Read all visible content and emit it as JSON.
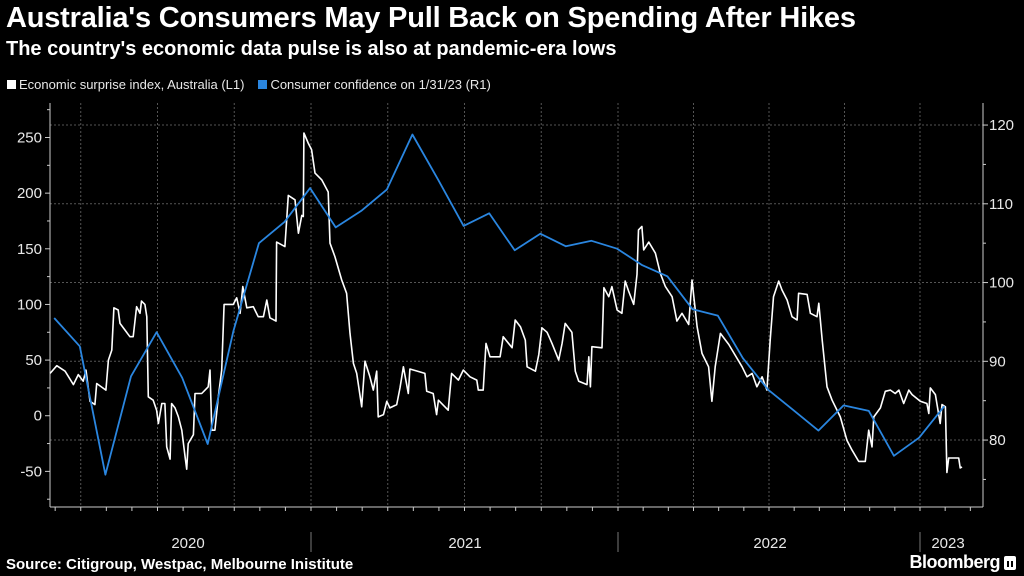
{
  "title": "Australia's Consumers May Pull Back on Spending After Hikes",
  "subtitle": "The country's economic data pulse is also at pandemic-era lows",
  "source": "Source: Citigroup, Westpac, Melbourne Inistitute",
  "brand": "Bloomberg",
  "colors": {
    "background": "#000000",
    "surprise": "#ffffff",
    "confidence": "#2a86e0",
    "grid": "#555555",
    "axis": "#cccccc"
  },
  "chart_data": {
    "type": "line",
    "title": "Australia's Consumers May Pull Back on Spending After Hikes",
    "legend_placement": "top-left",
    "grid": true,
    "x_axis": {
      "type": "date",
      "tick_labels": [
        "2020",
        "2021",
        "2022",
        "2023"
      ],
      "range": [
        "2020-02",
        "2023-03"
      ]
    },
    "y_left": {
      "label": "L1",
      "ticks": [
        -50,
        0,
        50,
        100,
        150,
        200,
        250
      ],
      "range": [
        -82,
        281
      ]
    },
    "y_right": {
      "label": "R1",
      "ticks": [
        80,
        90,
        100,
        110,
        120
      ],
      "range": [
        71.5,
        122.8
      ]
    },
    "series": [
      {
        "name": "Economic surprise index, Australia (L1)",
        "axis": "left",
        "x_unit": "decimal year",
        "points": [
          [
            2020.15,
            38
          ],
          [
            2020.172,
            45
          ],
          [
            2020.199,
            40
          ],
          [
            2020.226,
            28
          ],
          [
            2020.242,
            37
          ],
          [
            2020.258,
            31
          ],
          [
            2020.267,
            41
          ],
          [
            2020.28,
            13
          ],
          [
            2020.296,
            10
          ],
          [
            2020.302,
            29
          ],
          [
            2020.332,
            23
          ],
          [
            2020.34,
            50
          ],
          [
            2020.351,
            59
          ],
          [
            2020.358,
            97
          ],
          [
            2020.372,
            95
          ],
          [
            2020.378,
            83
          ],
          [
            2020.41,
            71
          ],
          [
            2020.421,
            71
          ],
          [
            2020.432,
            98
          ],
          [
            2020.443,
            92
          ],
          [
            2020.448,
            103
          ],
          [
            2020.459,
            100
          ],
          [
            2020.465,
            89
          ],
          [
            2020.47,
            17
          ],
          [
            2020.486,
            14
          ],
          [
            2020.497,
            5
          ],
          [
            2020.503,
            -7
          ],
          [
            2020.514,
            11
          ],
          [
            2020.524,
            11
          ],
          [
            2020.53,
            -28
          ],
          [
            2020.541,
            -39
          ],
          [
            2020.546,
            11
          ],
          [
            2020.557,
            7
          ],
          [
            2020.568,
            -1
          ],
          [
            2020.579,
            -13
          ],
          [
            2020.59,
            -37
          ],
          [
            2020.595,
            -48
          ],
          [
            2020.6,
            -25
          ],
          [
            2020.617,
            -17
          ],
          [
            2020.622,
            20
          ],
          [
            2020.644,
            20
          ],
          [
            2020.665,
            26
          ],
          [
            2020.671,
            41
          ],
          [
            2020.677,
            -13
          ],
          [
            2020.687,
            -13
          ],
          [
            2020.698,
            17
          ],
          [
            2020.709,
            41
          ],
          [
            2020.717,
            100
          ],
          [
            2020.747,
            100
          ],
          [
            2020.758,
            106
          ],
          [
            2020.769,
            92
          ],
          [
            2020.778,
            116
          ],
          [
            2020.791,
            97
          ],
          [
            2020.812,
            98
          ],
          [
            2020.828,
            89
          ],
          [
            2020.845,
            89
          ],
          [
            2020.856,
            104
          ],
          [
            2020.866,
            88
          ],
          [
            2020.886,
            85
          ],
          [
            2020.888,
            156
          ],
          [
            2020.915,
            152
          ],
          [
            2020.926,
            198
          ],
          [
            2020.948,
            194
          ],
          [
            2020.959,
            164
          ],
          [
            2020.97,
            180
          ],
          [
            2020.975,
            179
          ],
          [
            2020.977,
            254
          ],
          [
            2020.991,
            245
          ],
          [
            2021.002,
            239
          ],
          [
            2021.013,
            218
          ],
          [
            2021.035,
            212
          ],
          [
            2021.056,
            201
          ],
          [
            2021.062,
            155
          ],
          [
            2021.078,
            143
          ],
          [
            2021.1,
            122
          ],
          [
            2021.116,
            110
          ],
          [
            2021.127,
            74
          ],
          [
            2021.138,
            47
          ],
          [
            2021.149,
            38
          ],
          [
            2021.165,
            8
          ],
          [
            2021.176,
            49
          ],
          [
            2021.192,
            35
          ],
          [
            2021.203,
            23
          ],
          [
            2021.214,
            40
          ],
          [
            2021.219,
            -1
          ],
          [
            2021.236,
            1
          ],
          [
            2021.247,
            13
          ],
          [
            2021.257,
            7
          ],
          [
            2021.279,
            10
          ],
          [
            2021.29,
            25
          ],
          [
            2021.301,
            44
          ],
          [
            2021.317,
            20
          ],
          [
            2021.322,
            42
          ],
          [
            2021.371,
            38
          ],
          [
            2021.377,
            22
          ],
          [
            2021.398,
            20
          ],
          [
            2021.409,
            1
          ],
          [
            2021.415,
            14
          ],
          [
            2021.447,
            5
          ],
          [
            2021.458,
            38
          ],
          [
            2021.48,
            32
          ],
          [
            2021.496,
            41
          ],
          [
            2021.518,
            35
          ],
          [
            2021.54,
            32
          ],
          [
            2021.545,
            23
          ],
          [
            2021.561,
            23
          ],
          [
            2021.57,
            65
          ],
          [
            2021.583,
            53
          ],
          [
            2021.616,
            53
          ],
          [
            2021.626,
            71
          ],
          [
            2021.655,
            61
          ],
          [
            2021.665,
            86
          ],
          [
            2021.682,
            80
          ],
          [
            2021.698,
            68
          ],
          [
            2021.704,
            44
          ],
          [
            2021.731,
            40
          ],
          [
            2021.742,
            55
          ],
          [
            2021.752,
            79
          ],
          [
            2021.769,
            75
          ],
          [
            2021.785,
            65
          ],
          [
            2021.807,
            50
          ],
          [
            2021.818,
            65
          ],
          [
            2021.828,
            83
          ],
          [
            2021.85,
            75
          ],
          [
            2021.861,
            40
          ],
          [
            2021.872,
            31
          ],
          [
            2021.899,
            28
          ],
          [
            2021.905,
            53
          ],
          [
            2021.91,
            26
          ],
          [
            2021.915,
            62
          ],
          [
            2021.948,
            61
          ],
          [
            2021.954,
            115
          ],
          [
            2021.97,
            107
          ],
          [
            2021.98,
            116
          ],
          [
            2021.997,
            95
          ],
          [
            2022.013,
            92
          ],
          [
            2022.024,
            121
          ],
          [
            2022.035,
            112
          ],
          [
            2022.052,
            100
          ],
          [
            2022.063,
            127
          ],
          [
            2022.068,
            167
          ],
          [
            2022.079,
            170
          ],
          [
            2022.085,
            149
          ],
          [
            2022.102,
            156
          ],
          [
            2022.124,
            146
          ],
          [
            2022.14,
            128
          ],
          [
            2022.157,
            116
          ],
          [
            2022.179,
            107
          ],
          [
            2022.195,
            85
          ],
          [
            2022.212,
            92
          ],
          [
            2022.234,
            82
          ],
          [
            2022.245,
            122
          ],
          [
            2022.262,
            80
          ],
          [
            2022.278,
            56
          ],
          [
            2022.3,
            44
          ],
          [
            2022.311,
            13
          ],
          [
            2022.322,
            44
          ],
          [
            2022.339,
            74
          ],
          [
            2022.367,
            64
          ],
          [
            2022.411,
            44
          ],
          [
            2022.427,
            35
          ],
          [
            2022.444,
            38
          ],
          [
            2022.46,
            26
          ],
          [
            2022.477,
            35
          ],
          [
            2022.493,
            23
          ],
          [
            2022.504,
            68
          ],
          [
            2022.515,
            107
          ],
          [
            2022.532,
            121
          ],
          [
            2022.543,
            113
          ],
          [
            2022.56,
            104
          ],
          [
            2022.576,
            89
          ],
          [
            2022.593,
            86
          ],
          [
            2022.598,
            110
          ],
          [
            2022.626,
            109
          ],
          [
            2022.637,
            92
          ],
          [
            2022.659,
            89
          ],
          [
            2022.665,
            101
          ],
          [
            2022.676,
            68
          ],
          [
            2022.692,
            26
          ],
          [
            2022.709,
            14
          ],
          [
            2022.736,
            -1
          ],
          [
            2022.758,
            -22
          ],
          [
            2022.775,
            -31
          ],
          [
            2022.797,
            -41
          ],
          [
            2022.819,
            -41
          ],
          [
            2022.83,
            -13
          ],
          [
            2022.841,
            -28
          ],
          [
            2022.847,
            -1
          ],
          [
            2022.869,
            7
          ],
          [
            2022.885,
            22
          ],
          [
            2022.902,
            23
          ],
          [
            2022.918,
            20
          ],
          [
            2022.93,
            23
          ],
          [
            2022.946,
            11
          ],
          [
            2022.963,
            23
          ],
          [
            2022.974,
            19
          ],
          [
            2023.001,
            13
          ],
          [
            2023.023,
            11
          ],
          [
            2023.029,
            2
          ],
          [
            2023.034,
            25
          ],
          [
            2023.051,
            19
          ],
          [
            2023.067,
            -7
          ],
          [
            2023.073,
            10
          ],
          [
            2023.084,
            8
          ],
          [
            2023.089,
            -51
          ],
          [
            2023.095,
            -38
          ],
          [
            2023.128,
            -38
          ],
          [
            2023.133,
            -47
          ],
          [
            2023.139,
            -46
          ]
        ]
      },
      {
        "name": "Consumer confidence on 1/31/23 (R1)",
        "axis": "right",
        "x_unit": "month",
        "points": [
          [
            "2020-02",
            95.5
          ],
          [
            "2020-03",
            91.9
          ],
          [
            "2020-04",
            75.6
          ],
          [
            "2020-05",
            88.1
          ],
          [
            "2020-06",
            93.7
          ],
          [
            "2020-07",
            87.9
          ],
          [
            "2020-08",
            79.5
          ],
          [
            "2020-09",
            93.8
          ],
          [
            "2020-10",
            105.0
          ],
          [
            "2020-11",
            107.7
          ],
          [
            "2020-12",
            112.0
          ],
          [
            "2021-01",
            107.0
          ],
          [
            "2021-02",
            109.1
          ],
          [
            "2021-03",
            111.8
          ],
          [
            "2021-04",
            118.8
          ],
          [
            "2021-05",
            113.1
          ],
          [
            "2021-06",
            107.2
          ],
          [
            "2021-07",
            108.8
          ],
          [
            "2021-08",
            104.1
          ],
          [
            "2021-09",
            106.2
          ],
          [
            "2021-10",
            104.6
          ],
          [
            "2021-11",
            105.3
          ],
          [
            "2021-12",
            104.3
          ],
          [
            "2022-01",
            102.2
          ],
          [
            "2022-02",
            100.8
          ],
          [
            "2022-03",
            96.6
          ],
          [
            "2022-04",
            95.8
          ],
          [
            "2022-05",
            90.4
          ],
          [
            "2022-06",
            86.4
          ],
          [
            "2022-07",
            83.8
          ],
          [
            "2022-08",
            81.2
          ],
          [
            "2022-09",
            84.4
          ],
          [
            "2022-10",
            83.7
          ],
          [
            "2022-11",
            78.0
          ],
          [
            "2022-12",
            80.3
          ],
          [
            "2023-01",
            84.3
          ]
        ]
      }
    ]
  }
}
